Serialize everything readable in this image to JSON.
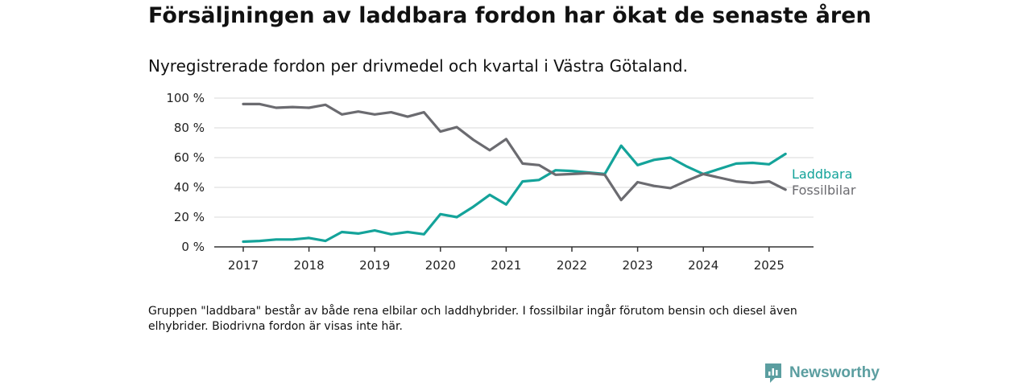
{
  "header": {
    "title": "Försäljningen av laddbara fordon har ökat de senaste åren",
    "subtitle": "Nyregistrerade fordon per drivmedel och kvartal i Västra Götaland."
  },
  "note": "Gruppen \"laddbara\" består av både rena elbilar och laddhybrider. I fossilbilar ingår förutom bensin och diesel även elhybrider. Biodrivna fordon är visas inte här.",
  "brand": {
    "name": "Newsworthy",
    "icon": "newsworthy-logo-icon",
    "color": "#5b9ea0"
  },
  "chart_data": {
    "type": "line",
    "title": "",
    "xlabel": "",
    "ylabel": "",
    "x": [
      "2017 Q1",
      "2017 Q2",
      "2017 Q3",
      "2017 Q4",
      "2018 Q1",
      "2018 Q2",
      "2018 Q3",
      "2018 Q4",
      "2019 Q1",
      "2019 Q2",
      "2019 Q3",
      "2019 Q4",
      "2020 Q1",
      "2020 Q2",
      "2020 Q3",
      "2020 Q4",
      "2021 Q1",
      "2021 Q2",
      "2021 Q3",
      "2021 Q4",
      "2022 Q1",
      "2022 Q2",
      "2022 Q3",
      "2022 Q4",
      "2023 Q1",
      "2023 Q2",
      "2023 Q3",
      "2023 Q4",
      "2024 Q1",
      "2024 Q2",
      "2024 Q3",
      "2024 Q4",
      "2025 Q1",
      "2025 Q2"
    ],
    "xticks": [
      "2017",
      "2018",
      "2019",
      "2020",
      "2021",
      "2022",
      "2023",
      "2024",
      "2025"
    ],
    "yticks": [
      "0 %",
      "20 %",
      "40 %",
      "60 %",
      "80 %",
      "100 %"
    ],
    "ylim": [
      0,
      100
    ],
    "grid": true,
    "series": [
      {
        "name": "Laddbara",
        "color": "#14a39a",
        "values": [
          3.5,
          4,
          5,
          5,
          6,
          4,
          10,
          9,
          11,
          8.5,
          10,
          8.5,
          22,
          20,
          27,
          35,
          28.5,
          44,
          45,
          51.5,
          51,
          50,
          49,
          68,
          55,
          58.5,
          60,
          54,
          49,
          52.5,
          56,
          56.5,
          55.5,
          62.5
        ]
      },
      {
        "name": "Fossilbilar",
        "color": "#6b6b70",
        "values": [
          96,
          96,
          93.5,
          94,
          93.5,
          95.5,
          89,
          91,
          89,
          90.5,
          87.5,
          90.5,
          77.5,
          80.5,
          72,
          65,
          72.5,
          56,
          55,
          48.5,
          49,
          49.5,
          48.5,
          31.5,
          43.5,
          41,
          39.5,
          44.5,
          49,
          46.5,
          44,
          43,
          44,
          38.5
        ]
      }
    ]
  }
}
